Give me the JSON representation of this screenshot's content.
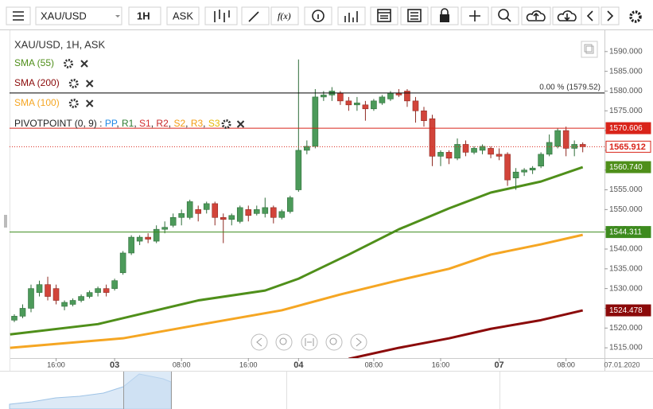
{
  "toolbar": {
    "symbol": "XAU/USD",
    "period": "1H",
    "side": "ASK"
  },
  "chart_data": {
    "type": "candlestick",
    "title": "XAU/USD, 1H, ASK",
    "date": "07.01.2020",
    "up_color": "#4c9a5a",
    "down_color": "#d2443a",
    "open": [
      1522,
      1523,
      1525,
      1529,
      1531,
      1530,
      1525.5,
      1526,
      1527,
      1528,
      1529,
      1530,
      1530,
      1534,
      1539,
      1542,
      1543,
      1542,
      1545,
      1546,
      1548,
      1548,
      1550,
      1550,
      1551.5,
      1548,
      1547.5,
      1547,
      1550,
      1549,
      1549,
      1550.5,
      1548,
      1549.5,
      1555,
      1565,
      1566,
      1578.5,
      1579,
      1579.5,
      1577.5,
      1576.5,
      1576.5,
      1575.5,
      1577,
      1578,
      1579.5,
      1580,
      1577.5,
      1575,
      1573,
      1563.5,
      1564.5,
      1563,
      1566.5,
      1564.5,
      1565,
      1565.5,
      1564,
      1564,
      1558,
      1559.5,
      1560,
      1561,
      1564,
      1566,
      1570,
      1565.5,
      1566.5
    ],
    "high": [
      1523.5,
      1526,
      1531,
      1532,
      1533,
      1531,
      1527,
      1527.5,
      1528.5,
      1529.5,
      1530.5,
      1531,
      1532.5,
      1539.5,
      1543.5,
      1543.5,
      1544,
      1546,
      1547,
      1549,
      1550,
      1552.5,
      1551,
      1552,
      1552,
      1549,
      1549,
      1551,
      1551,
      1551,
      1553,
      1551,
      1550,
      1553.5,
      1588,
      1567.5,
      1580.5,
      1580,
      1581,
      1580,
      1578.5,
      1578.5,
      1577.5,
      1578,
      1579,
      1580,
      1580.5,
      1580.5,
      1578.5,
      1576,
      1574,
      1565,
      1565,
      1568,
      1567.5,
      1566,
      1566.5,
      1566,
      1565.5,
      1564.5,
      1560.5,
      1560.5,
      1561,
      1564.5,
      1569,
      1570.5,
      1571,
      1567.5,
      1567
    ],
    "low": [
      1521.5,
      1522.5,
      1524,
      1528,
      1527,
      1526,
      1524.5,
      1525.5,
      1526.5,
      1527.5,
      1528,
      1528,
      1529.5,
      1533.5,
      1538.5,
      1541,
      1541.5,
      1541.5,
      1544,
      1545.5,
      1546,
      1547.5,
      1547,
      1549,
      1546,
      1541.5,
      1546,
      1546.5,
      1547,
      1548.5,
      1548,
      1546.5,
      1547.5,
      1549,
      1554.5,
      1564,
      1565.5,
      1577.5,
      1577.5,
      1576.5,
      1575,
      1575,
      1572.5,
      1575,
      1576.5,
      1577.5,
      1578.5,
      1576,
      1572,
      1571,
      1561,
      1561,
      1561.5,
      1562.5,
      1563.5,
      1564,
      1564,
      1563,
      1562.5,
      1556,
      1555,
      1558.5,
      1559,
      1560.5,
      1563.5,
      1565.5,
      1563.5,
      1563.5,
      1564.5
    ],
    "close": [
      1523,
      1525,
      1530,
      1531,
      1528,
      1527,
      1526.5,
      1527,
      1528,
      1529,
      1530,
      1529,
      1532,
      1539,
      1543,
      1543,
      1542.5,
      1545,
      1545.5,
      1548,
      1549,
      1552,
      1549,
      1551.5,
      1548,
      1547.5,
      1548.5,
      1550.5,
      1548.5,
      1550,
      1550.5,
      1548,
      1549.5,
      1553,
      1565,
      1566,
      1578.5,
      1579,
      1580,
      1577.5,
      1576.5,
      1577,
      1575.5,
      1577.5,
      1578.5,
      1579.5,
      1579,
      1577.5,
      1575,
      1572.5,
      1563.5,
      1564.5,
      1563,
      1566.5,
      1564.5,
      1565.5,
      1566,
      1564,
      1563.5,
      1557.5,
      1559.5,
      1560,
      1560.5,
      1564,
      1567,
      1570,
      1565.5,
      1566.5,
      1565.912
    ],
    "series": [
      {
        "name": "SMA (55)",
        "color": "#4f8f1a",
        "x": [
          -0.5,
          10,
          22,
          30,
          34,
          40,
          46,
          52,
          57,
          63,
          68
        ],
        "values": [
          1518.4,
          1521,
          1527,
          1529.5,
          1532.5,
          1538.6,
          1545,
          1550.3,
          1554.3,
          1557.1,
          1560.74
        ],
        "value_labels": [
          null,
          null,
          null,
          null,
          null,
          null,
          null,
          null,
          null,
          null,
          "1560.740"
        ]
      },
      {
        "name": "SMA (200)",
        "color": "#8b0a0a",
        "x": [
          40,
          46,
          52,
          57,
          63,
          68
        ],
        "values": [
          1512.2,
          1515,
          1517.4,
          1519.8,
          1522,
          1524.478
        ],
        "value_labels": [
          null,
          null,
          null,
          null,
          null,
          1524.478
        ]
      },
      {
        "name": "SMA (100)",
        "color": "#f5a623",
        "x": [
          -0.5,
          13,
          22,
          32,
          39,
          46,
          52,
          57,
          63,
          68
        ],
        "values": [
          1515,
          1517.4,
          1520.8,
          1524.5,
          1528.5,
          1532.1,
          1535,
          1538.6,
          1541.2,
          1543.6
        ]
      }
    ],
    "pivot": {
      "name": "PIVOTPOINT (0, 9)",
      "prefix": ":",
      "separator": ",",
      "components": [
        {
          "name": "PP",
          "color": "#1e88e5"
        },
        {
          "name": "R1",
          "color": "#2e7d32"
        },
        {
          "name": "S1",
          "color": "#d32f2f"
        },
        {
          "name": "R2",
          "color": "#c62828"
        },
        {
          "name": "S2",
          "color": "#f39c12"
        },
        {
          "name": "R3",
          "color": "#f39c12"
        },
        {
          "name": "S3",
          "color": "#e6b800"
        }
      ]
    },
    "levels": [
      {
        "value": 1579.52,
        "color": "#000000",
        "label": "0.00 % (1579.52)"
      },
      {
        "value": 1570.606,
        "color": "#d9241a",
        "tag": true
      },
      {
        "value": 1544.311,
        "color": "#3d8b1e",
        "tag": true
      },
      {
        "value": 1565.912,
        "color": "#d9241a",
        "style": "dotted",
        "tag": true
      }
    ],
    "xlim": [
      -0.57,
      70.6
    ],
    "xticks": [
      {
        "value": 5,
        "label": "16:00"
      },
      {
        "value": 12,
        "label": "03"
      },
      {
        "value": 20,
        "label": "08:00"
      },
      {
        "value": 28,
        "label": "16:00"
      },
      {
        "value": 34,
        "label": "04"
      },
      {
        "value": 43,
        "label": "08:00"
      },
      {
        "value": 51,
        "label": "16:00"
      },
      {
        "value": 58,
        "label": "07"
      },
      {
        "value": 66,
        "label": "08:00"
      }
    ],
    "ylim": [
      1512.4,
      1595.4
    ],
    "yticks": [
      {
        "value": 1515,
        "label": "1515.000"
      },
      {
        "value": 1520,
        "label": "1520.000"
      },
      {
        "value": 1525,
        "label": "1525.000"
      },
      {
        "value": 1530,
        "label": "1530.000"
      },
      {
        "value": 1535,
        "label": "1535.000"
      },
      {
        "value": 1540,
        "label": "1540.000"
      },
      {
        "value": 1545,
        "label": "1545.000"
      },
      {
        "value": 1550,
        "label": "1550.000"
      },
      {
        "value": 1555,
        "label": "1555.000"
      },
      {
        "value": 1560,
        "label": "1560.000"
      },
      {
        "value": 1565,
        "label": "1565.000"
      },
      {
        "value": 1570,
        "label": "1570.000"
      },
      {
        "value": 1575,
        "label": "1575.000"
      },
      {
        "value": 1580,
        "label": "1580.000"
      },
      {
        "value": 1585,
        "label": "1585.000"
      },
      {
        "value": 1590,
        "label": "1590.000"
      }
    ]
  }
}
